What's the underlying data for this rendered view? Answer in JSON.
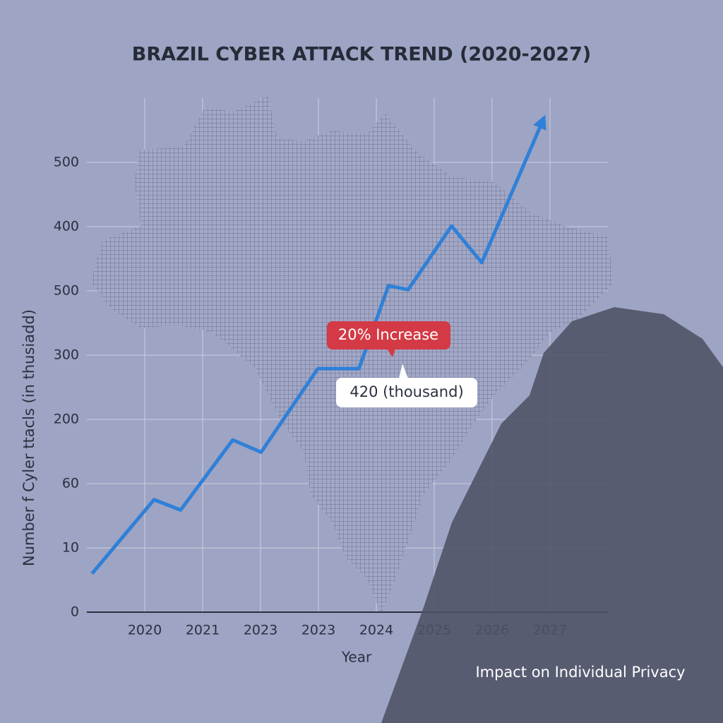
{
  "chart_data": {
    "type": "line",
    "title": "BRAZIL CYBER ATTACK TREND (2020-2027)",
    "x_label": "Year",
    "y_label": "Number f Cyler ttacls (in thusiadd)",
    "caption": "Impact on Individual Privacy",
    "annotations": [
      "20% Increase",
      "420 (thousand)"
    ],
    "xlim": [
      0,
      9
    ],
    "xticks": [
      {
        "value": 1,
        "label": "2020"
      },
      {
        "value": 2,
        "label": "2021"
      },
      {
        "value": 3,
        "label": "2023"
      },
      {
        "value": 4,
        "label": "2023"
      },
      {
        "value": 5,
        "label": "2024"
      },
      {
        "value": 6,
        "label": "2025"
      },
      {
        "value": 7,
        "label": "2026"
      },
      {
        "value": 8,
        "label": "2027"
      }
    ],
    "ylim": [
      0,
      8
    ],
    "yticks": [
      {
        "value": 0,
        "label": "0"
      },
      {
        "value": 1,
        "label": "10"
      },
      {
        "value": 2,
        "label": "60"
      },
      {
        "value": 3,
        "label": "200"
      },
      {
        "value": 4,
        "label": "300"
      },
      {
        "value": 5,
        "label": "500"
      },
      {
        "value": 6,
        "label": "400"
      },
      {
        "value": 7,
        "label": "500"
      }
    ],
    "grid": true,
    "series": [
      {
        "color": "#2f80d8",
        "x": [
          0.09,
          1.16,
          1.62,
          2.52,
          3.01,
          3.99,
          4.7,
          5.21,
          5.55,
          6.3,
          6.82,
          7.87
        ],
        "values": [
          0.6,
          1.75,
          1.59,
          2.68,
          2.49,
          3.79,
          3.79,
          5.08,
          5.02,
          6.01,
          5.44,
          7.64
        ]
      }
    ]
  }
}
